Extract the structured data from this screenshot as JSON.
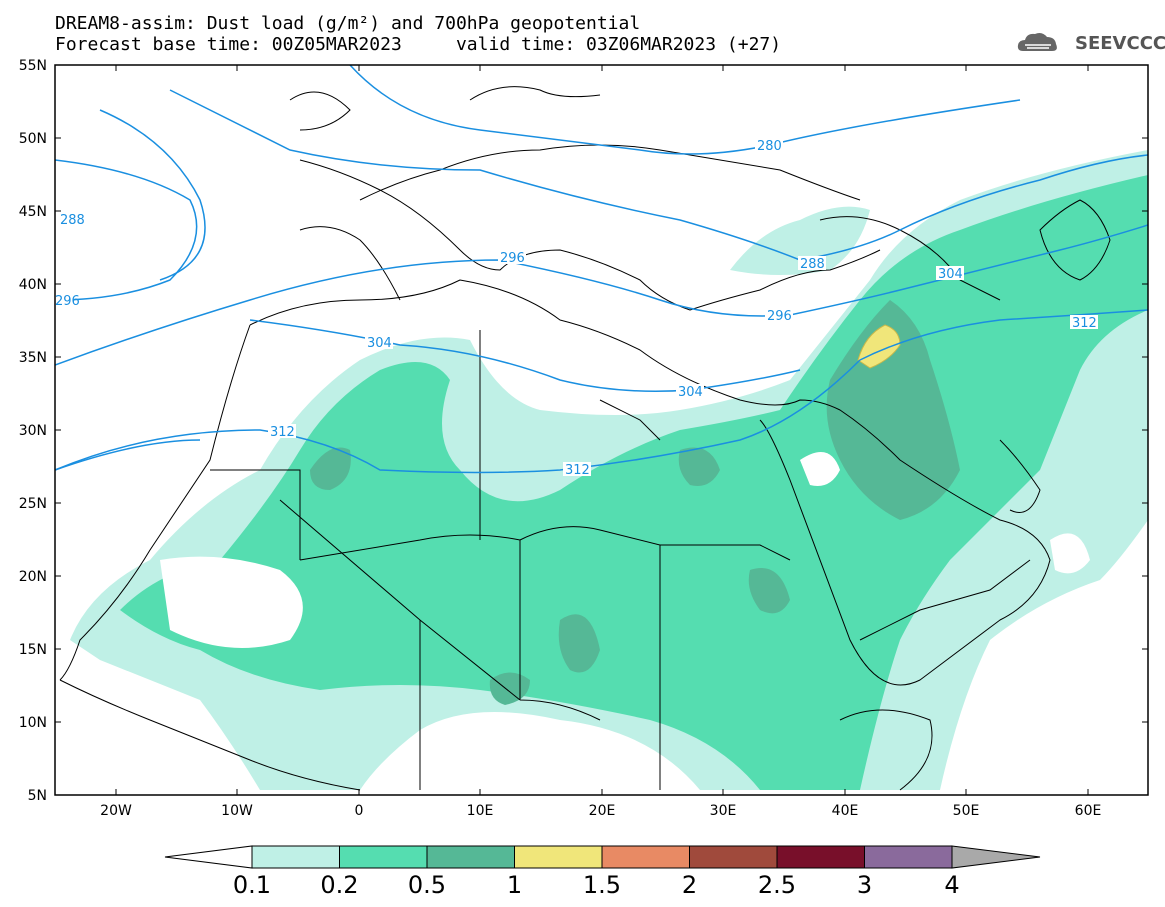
{
  "header": {
    "title_line1": "DREAM8-assim: Dust load (g/m²) and 700hPa geopotential",
    "title_line2": "Forecast base time: 00Z05MAR2023     valid time: 03Z06MAR2023 (+27)",
    "logo_text": "SEEVCCC",
    "logo_icon": "cloud-icon"
  },
  "axes": {
    "lat_labels": [
      "55N",
      "50N",
      "45N",
      "40N",
      "35N",
      "30N",
      "25N",
      "20N",
      "15N",
      "10N",
      "5N"
    ],
    "lon_labels": [
      "20W",
      "10W",
      "0",
      "10E",
      "20E",
      "30E",
      "40E",
      "50E",
      "60E"
    ]
  },
  "contours": {
    "color": "#1a8fe0",
    "labels": [
      "280",
      "288",
      "288",
      "296",
      "296",
      "296",
      "304",
      "304",
      "304",
      "312",
      "312",
      "312"
    ]
  },
  "colorbar": {
    "colors": [
      "#ffffff",
      "#bff0e6",
      "#55ddb0",
      "#55b896",
      "#f0e67a",
      "#e88a64",
      "#a04a3c",
      "#780f2a",
      "#8a6a9c",
      "#a9a9a9"
    ],
    "tick_labels": [
      "0.1",
      "0.2",
      "0.5",
      "1",
      "1.5",
      "2",
      "2.5",
      "3",
      "4"
    ]
  },
  "legend_dust_colors": {
    "light": "#bff0e6",
    "medium": "#55ddb0",
    "dark": "#55b896",
    "yellow": "#f0e67a"
  }
}
